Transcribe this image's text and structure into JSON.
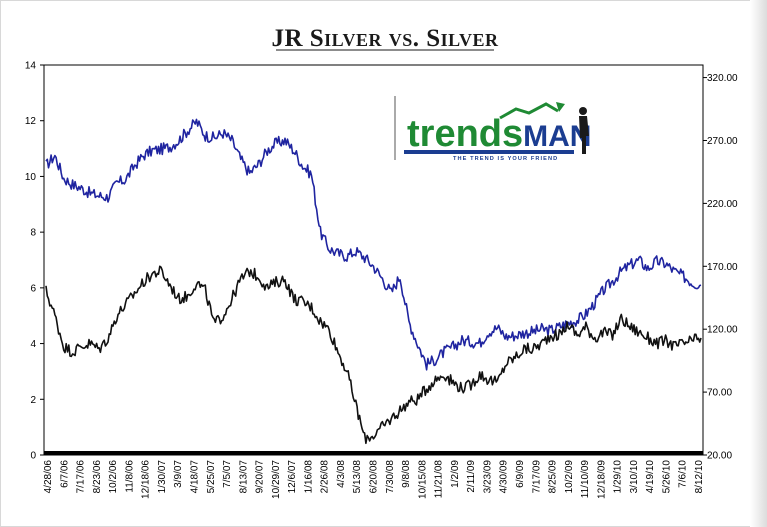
{
  "colors": {
    "series_blue": "#1f24a0",
    "series_black": "#111111",
    "logo_green": "#1f8a34",
    "logo_blue": "#1b3d91"
  },
  "logo": {
    "part1": "trends",
    "part2": "MAN",
    "tagline": "THE TREND IS YOUR FRIEND"
  },
  "chart_data": {
    "type": "line",
    "title": "JR Silver vs. Silver",
    "x_ticks": [
      "4/28/06",
      "6/7/06",
      "7/17/06",
      "8/23/06",
      "10/2/06",
      "11/8/06",
      "12/18/06",
      "1/30/07",
      "3/9/07",
      "4/18/07",
      "5/25/07",
      "7/5/07",
      "8/13/07",
      "9/20/07",
      "10/29/07",
      "12/6/07",
      "1/16/08",
      "2/26/08",
      "4/3/08",
      "5/13/08",
      "6/20/08",
      "7/30/08",
      "9/8/08",
      "10/15/08",
      "11/21/08",
      "1/2/09",
      "2/11/09",
      "3/23/09",
      "4/30/09",
      "6/9/09",
      "7/17/09",
      "8/25/09",
      "10/2/09",
      "11/10/09",
      "12/18/09",
      "1/29/10",
      "3/10/10",
      "4/19/10",
      "5/26/10",
      "7/6/10",
      "8/12/10"
    ],
    "y_left": {
      "ticks": [
        "0",
        "2",
        "4",
        "6",
        "8",
        "10",
        "12",
        "14"
      ],
      "range": [
        0,
        14
      ],
      "label": ""
    },
    "y_right": {
      "ticks": [
        "20.00",
        "70.00",
        "120.00",
        "170.00",
        "220.00",
        "270.00",
        "320.00"
      ],
      "range": [
        20,
        330
      ],
      "label": ""
    },
    "series": [
      {
        "name": "JR Silver",
        "axis": "right",
        "color": "#1f24a0",
        "values": [
          250,
          258,
          240,
          235,
          232,
          228,
          226,
          225,
          236,
          239,
          250,
          258,
          262,
          263,
          265,
          270,
          278,
          285,
          274,
          272,
          276,
          270,
          255,
          244,
          251,
          262,
          268,
          270,
          262,
          250,
          243,
          197,
          184,
          180,
          178,
          182,
          177,
          170,
          160,
          149,
          162,
          126,
          108,
          92,
          96,
          102,
          106,
          111,
          110,
          109,
          118,
          121,
          114,
          115,
          117,
          118,
          120,
          119,
          122,
          125,
          127,
          132,
          141,
          151,
          158,
          166,
          171,
          175,
          168,
          174,
          172,
          166,
          162,
          157,
          155
        ]
      },
      {
        "name": "Silver",
        "axis": "left",
        "color": "#111111",
        "values": [
          5.9,
          5.0,
          3.9,
          3.7,
          3.9,
          4.0,
          3.8,
          4.2,
          5.0,
          5.4,
          5.8,
          6.2,
          6.5,
          6.6,
          6.1,
          5.6,
          5.7,
          6.2,
          5.9,
          4.7,
          5.0,
          5.6,
          6.3,
          6.6,
          6.4,
          6.0,
          6.2,
          6.3,
          5.6,
          5.5,
          5.3,
          4.8,
          4.5,
          3.7,
          3.0,
          1.8,
          0.6,
          0.7,
          1.0,
          1.3,
          1.6,
          1.9,
          2.0,
          2.4,
          2.7,
          2.9,
          2.6,
          2.4,
          2.5,
          2.9,
          2.7,
          2.6,
          3.3,
          3.5,
          3.8,
          3.8,
          4.0,
          4.3,
          4.3,
          4.7,
          4.3,
          4.6,
          4.2,
          4.4,
          4.3,
          4.9,
          4.6,
          4.4,
          4.2,
          4.0,
          4.1,
          3.9,
          4.0,
          4.1,
          4.2
        ]
      }
    ]
  }
}
